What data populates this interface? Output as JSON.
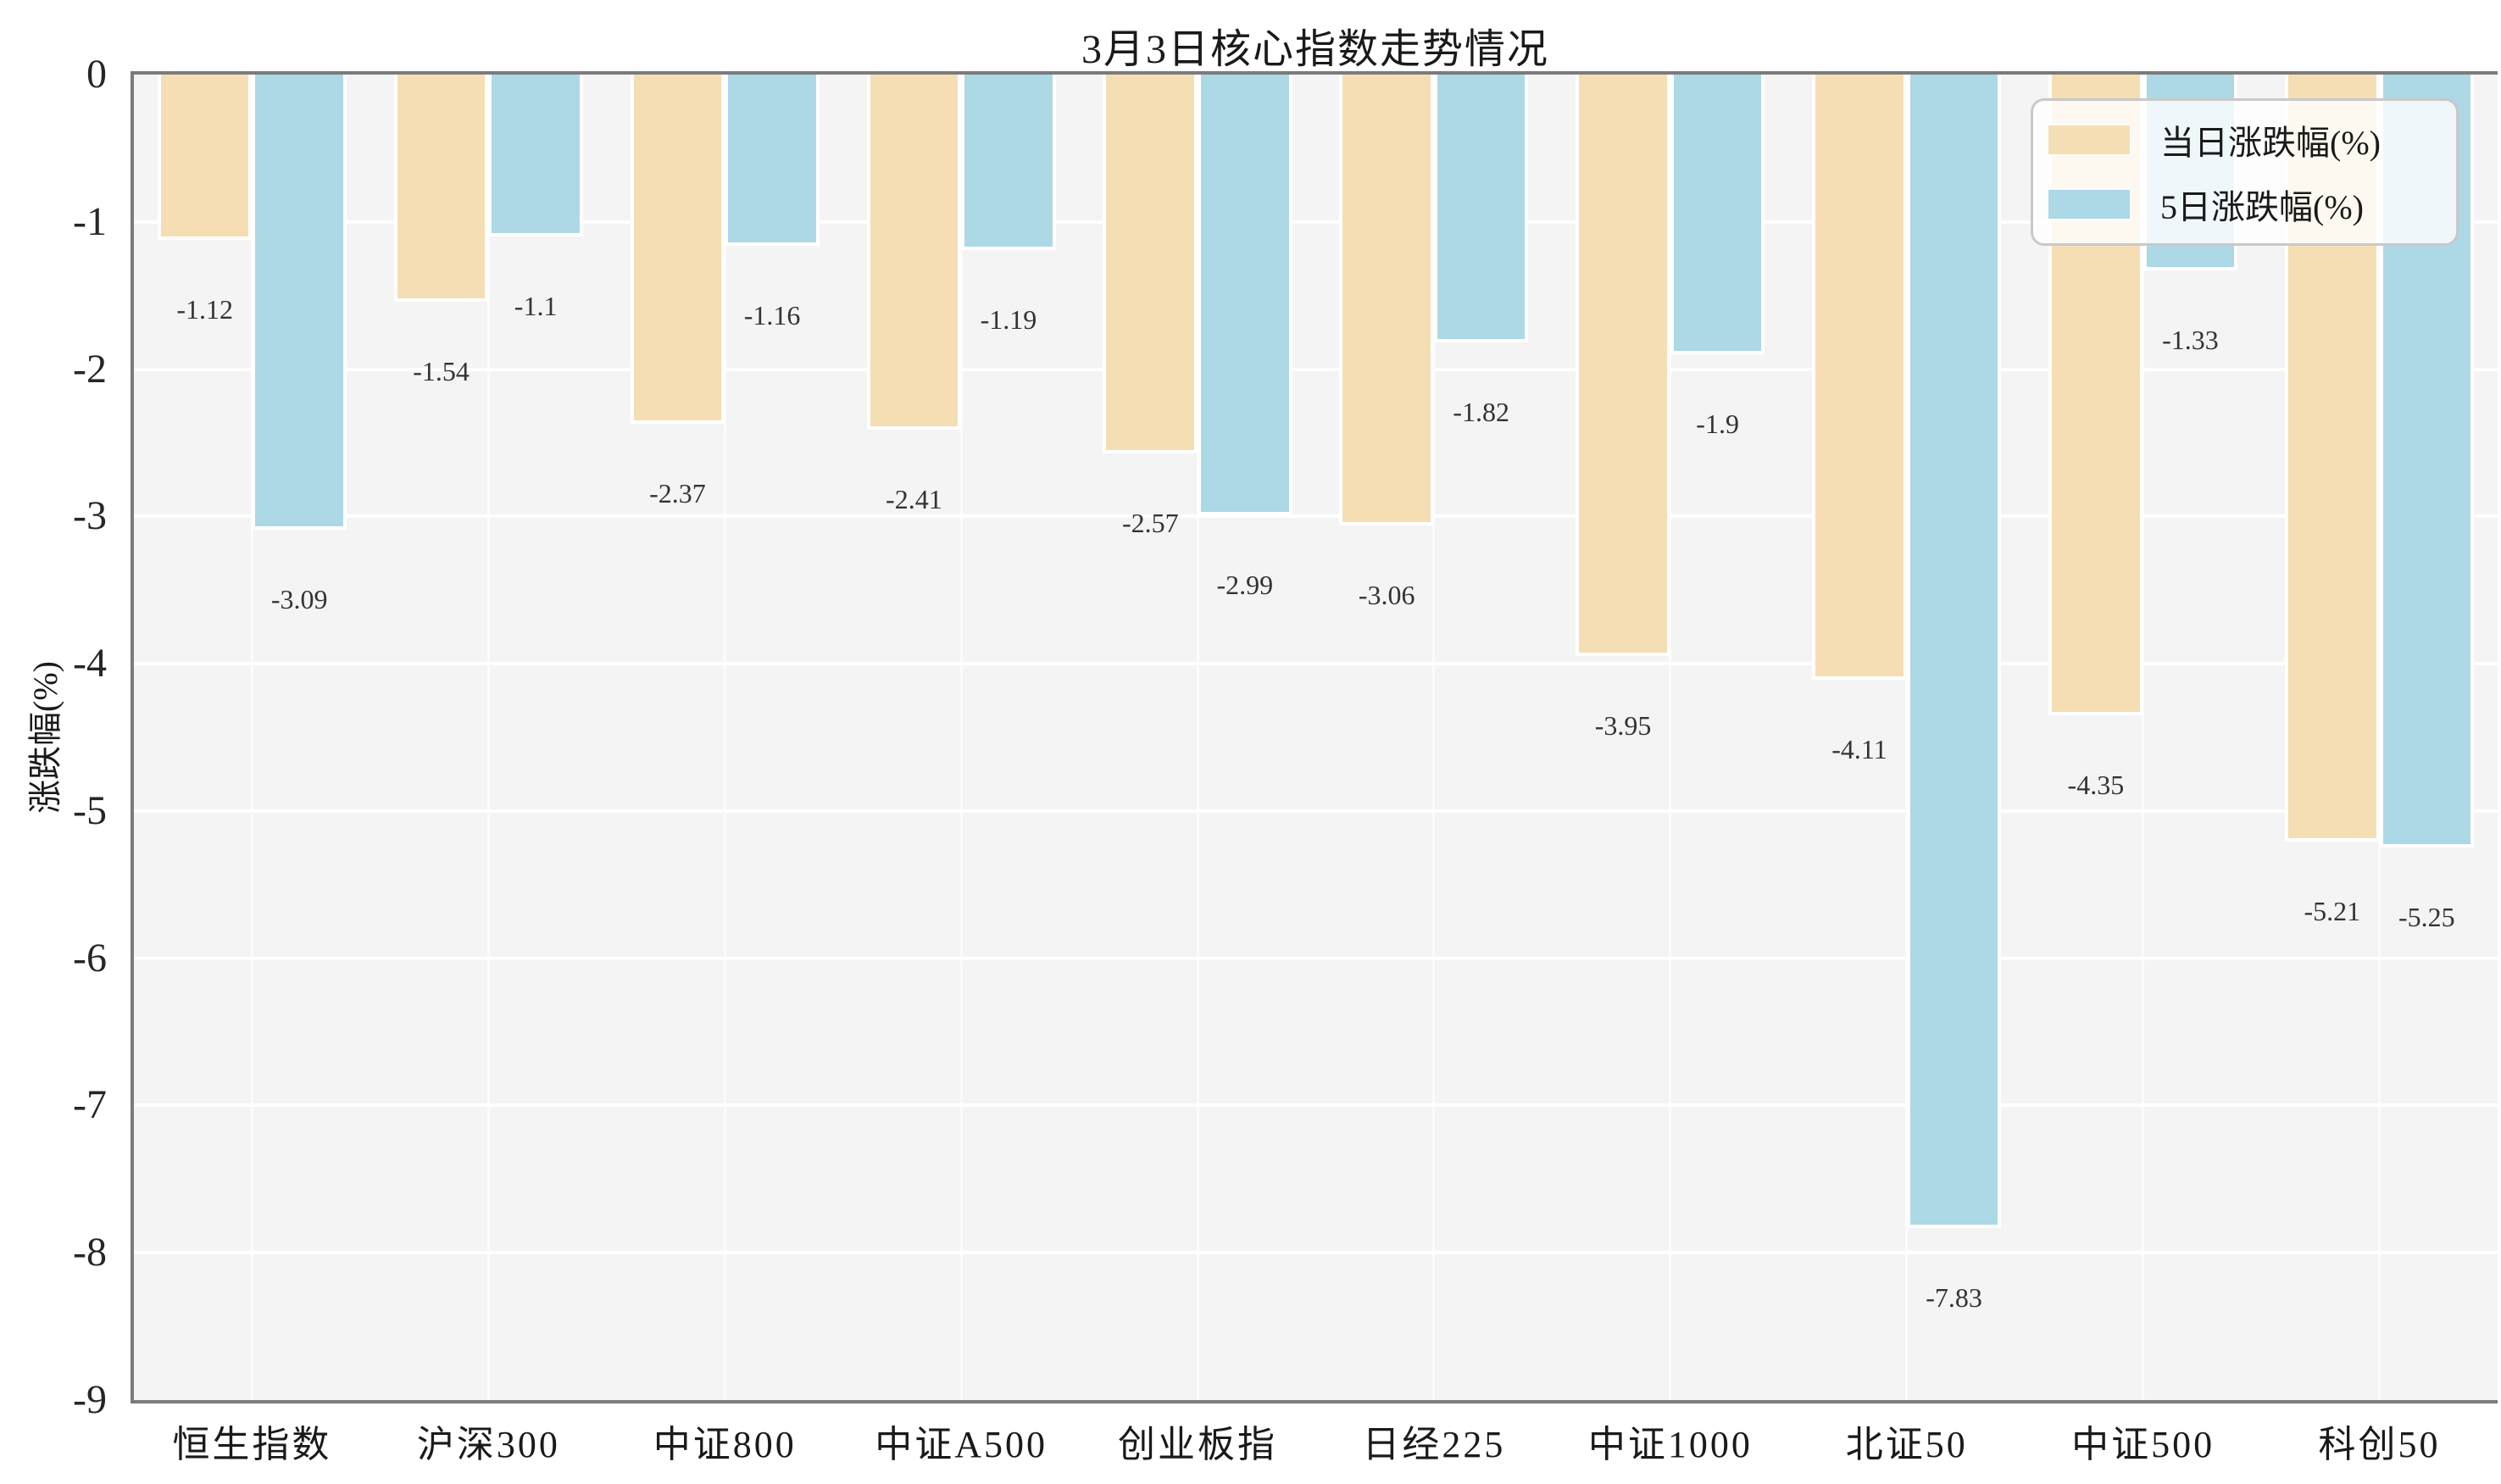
{
  "title": "3月3日核心指数走势情况",
  "colors": {
    "series_daily": "#f5deb3",
    "series_5day": "#add8e6",
    "plot_background": "#f4f4f4",
    "gridline": "#ffffff",
    "spine": "#7b7b7b",
    "text": "#1a1a1a",
    "value_label_text": "#333333"
  },
  "chart_data": {
    "type": "bar",
    "title": "3月3日核心指数走势情况",
    "xlabel": "",
    "ylabel": "涨跌幅(%)",
    "ylim": [
      -9,
      0
    ],
    "yticks": [
      0,
      -1,
      -2,
      -3,
      -4,
      -5,
      -6,
      -7,
      -8,
      -9
    ],
    "grid": true,
    "value_labels": true,
    "legend_position": "upper right",
    "categories": [
      "恒生指数",
      "沪深300",
      "中证800",
      "中证A500",
      "创业板指",
      "日经225",
      "中证1000",
      "北证50",
      "中证500",
      "科创50"
    ],
    "series": [
      {
        "name": "当日涨跌幅(%)",
        "color": "#f5deb3",
        "values": [
          -1.12,
          -1.54,
          -2.37,
          -2.41,
          -2.57,
          -3.06,
          -3.95,
          -4.11,
          -4.35,
          -5.21
        ]
      },
      {
        "name": "5日涨跌幅(%)",
        "color": "#add8e6",
        "values": [
          -3.09,
          -1.1,
          -1.16,
          -1.19,
          -2.99,
          -1.82,
          -1.9,
          -7.83,
          -1.33,
          -5.25
        ]
      }
    ]
  }
}
